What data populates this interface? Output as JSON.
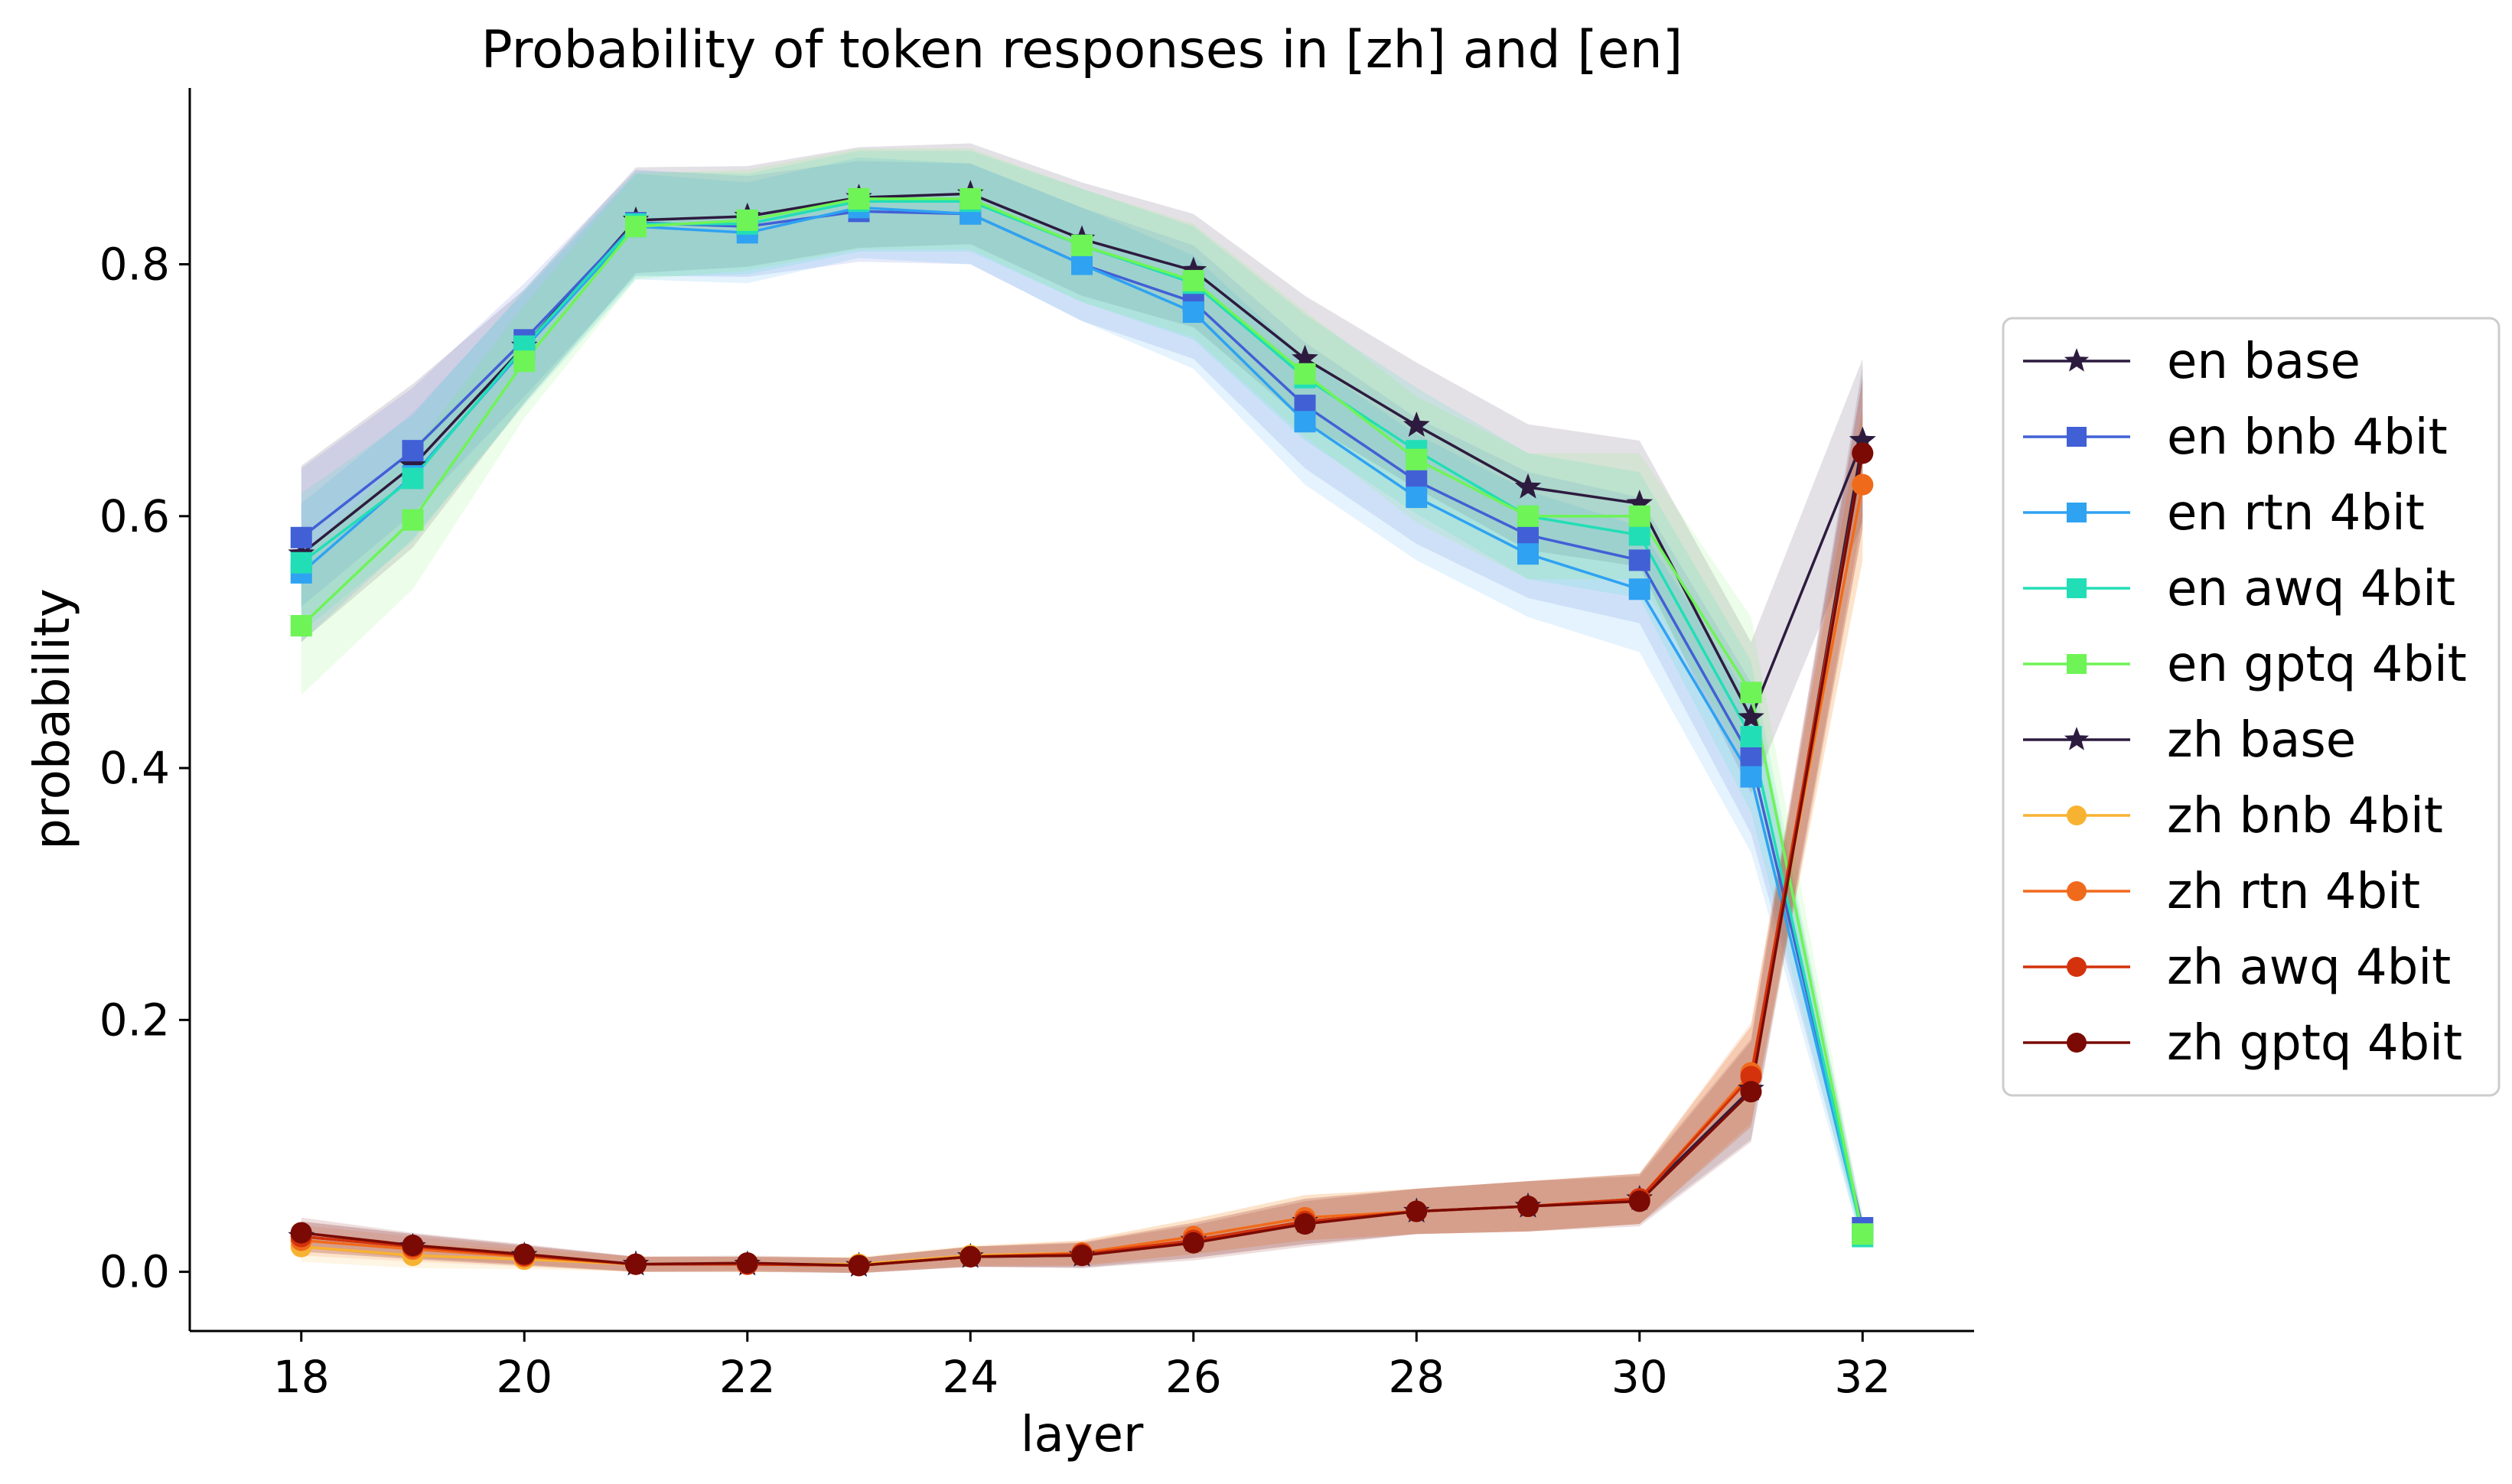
{
  "chart_data": {
    "type": "line",
    "title": "Probability of token responses in [zh] and [en]",
    "xlabel": "layer",
    "ylabel": "probability",
    "xlim": [
      17,
      33
    ],
    "ylim": [
      -0.047,
      0.94
    ],
    "xticks": [
      "18",
      "20",
      "22",
      "24",
      "26",
      "28",
      "30",
      "32"
    ],
    "yticks": [
      "0.0",
      "0.2",
      "0.4",
      "0.6",
      "0.8"
    ],
    "x": [
      18,
      19,
      20,
      21,
      22,
      23,
      24,
      25,
      26,
      27,
      28,
      29,
      30,
      31,
      32
    ],
    "grid": false,
    "legend_position": "right",
    "series": [
      {
        "name": "en base",
        "marker": "star",
        "color": "#2d1b3f",
        "values": [
          0.57,
          0.64,
          0.735,
          0.835,
          0.838,
          0.853,
          0.856,
          0.82,
          0.795,
          0.725,
          0.672,
          0.623,
          0.61,
          0.44,
          0.66
        ],
        "band": [
          0.07,
          0.065,
          0.045,
          0.042,
          0.04,
          0.04,
          0.04,
          0.045,
          0.045,
          0.05,
          0.05,
          0.05,
          0.05,
          0.06,
          0.065
        ]
      },
      {
        "name": "en bnb 4bit",
        "marker": "square",
        "color": "#4160d6",
        "values": [
          0.583,
          0.652,
          0.74,
          0.833,
          0.83,
          0.842,
          0.84,
          0.8,
          0.77,
          0.688,
          0.628,
          0.585,
          0.565,
          0.408,
          0.035
        ],
        "band": [
          0.055,
          0.05,
          0.045,
          0.042,
          0.04,
          0.04,
          0.04,
          0.045,
          0.045,
          0.05,
          0.05,
          0.05,
          0.05,
          0.06,
          0.01
        ]
      },
      {
        "name": "en rtn 4bit",
        "marker": "square",
        "color": "#2fa2f2",
        "values": [
          0.555,
          0.632,
          0.733,
          0.83,
          0.825,
          0.845,
          0.84,
          0.8,
          0.762,
          0.675,
          0.615,
          0.57,
          0.542,
          0.393,
          0.03
        ],
        "band": [
          0.055,
          0.05,
          0.045,
          0.042,
          0.04,
          0.04,
          0.04,
          0.045,
          0.045,
          0.05,
          0.05,
          0.05,
          0.05,
          0.06,
          0.01
        ]
      },
      {
        "name": "en awq 4bit",
        "marker": "square",
        "color": "#22deb6",
        "values": [
          0.563,
          0.63,
          0.735,
          0.832,
          0.832,
          0.85,
          0.85,
          0.815,
          0.785,
          0.71,
          0.652,
          0.6,
          0.585,
          0.425,
          0.028
        ],
        "band": [
          0.055,
          0.05,
          0.045,
          0.042,
          0.04,
          0.04,
          0.04,
          0.045,
          0.045,
          0.05,
          0.05,
          0.05,
          0.05,
          0.06,
          0.01
        ]
      },
      {
        "name": "en gptq 4bit",
        "marker": "square",
        "color": "#6ef456",
        "values": [
          0.513,
          0.597,
          0.723,
          0.83,
          0.835,
          0.852,
          0.852,
          0.815,
          0.787,
          0.713,
          0.645,
          0.6,
          0.6,
          0.46,
          0.03
        ],
        "band": [
          0.055,
          0.055,
          0.045,
          0.042,
          0.04,
          0.04,
          0.04,
          0.045,
          0.045,
          0.05,
          0.05,
          0.05,
          0.05,
          0.06,
          0.01
        ]
      },
      {
        "name": "zh base",
        "marker": "star",
        "color": "#2d1b3f",
        "values": [
          0.028,
          0.02,
          0.013,
          0.006,
          0.006,
          0.005,
          0.012,
          0.013,
          0.025,
          0.04,
          0.048,
          0.052,
          0.058,
          0.145,
          0.66
        ],
        "band": [
          0.012,
          0.01,
          0.008,
          0.006,
          0.006,
          0.006,
          0.008,
          0.01,
          0.014,
          0.018,
          0.018,
          0.02,
          0.02,
          0.04,
          0.06
        ]
      },
      {
        "name": "zh bnb 4bit",
        "marker": "circle",
        "color": "#f8b232",
        "values": [
          0.02,
          0.013,
          0.01,
          0.006,
          0.006,
          0.006,
          0.013,
          0.015,
          0.028,
          0.043,
          0.048,
          0.052,
          0.058,
          0.155,
          0.625
        ],
        "band": [
          0.012,
          0.01,
          0.008,
          0.006,
          0.006,
          0.006,
          0.008,
          0.01,
          0.014,
          0.018,
          0.018,
          0.02,
          0.02,
          0.04,
          0.06
        ]
      },
      {
        "name": "zh rtn 4bit",
        "marker": "circle",
        "color": "#f06a1c",
        "values": [
          0.025,
          0.018,
          0.012,
          0.006,
          0.006,
          0.005,
          0.012,
          0.015,
          0.028,
          0.043,
          0.048,
          0.052,
          0.058,
          0.158,
          0.625
        ],
        "band": [
          0.012,
          0.01,
          0.008,
          0.006,
          0.006,
          0.006,
          0.008,
          0.01,
          0.014,
          0.018,
          0.018,
          0.02,
          0.02,
          0.04,
          0.06
        ]
      },
      {
        "name": "zh awq 4bit",
        "marker": "circle",
        "color": "#d3320c",
        "values": [
          0.028,
          0.02,
          0.013,
          0.006,
          0.006,
          0.005,
          0.012,
          0.014,
          0.025,
          0.04,
          0.048,
          0.052,
          0.058,
          0.155,
          0.65
        ],
        "band": [
          0.012,
          0.01,
          0.008,
          0.006,
          0.006,
          0.006,
          0.008,
          0.01,
          0.014,
          0.018,
          0.018,
          0.02,
          0.02,
          0.04,
          0.06
        ]
      },
      {
        "name": "zh gptq 4bit",
        "marker": "circle",
        "color": "#7a0a03",
        "values": [
          0.031,
          0.021,
          0.014,
          0.006,
          0.007,
          0.005,
          0.012,
          0.013,
          0.023,
          0.038,
          0.048,
          0.052,
          0.056,
          0.143,
          0.65
        ],
        "band": [
          0.012,
          0.01,
          0.008,
          0.006,
          0.006,
          0.006,
          0.008,
          0.01,
          0.014,
          0.018,
          0.018,
          0.02,
          0.02,
          0.04,
          0.06
        ]
      }
    ]
  }
}
